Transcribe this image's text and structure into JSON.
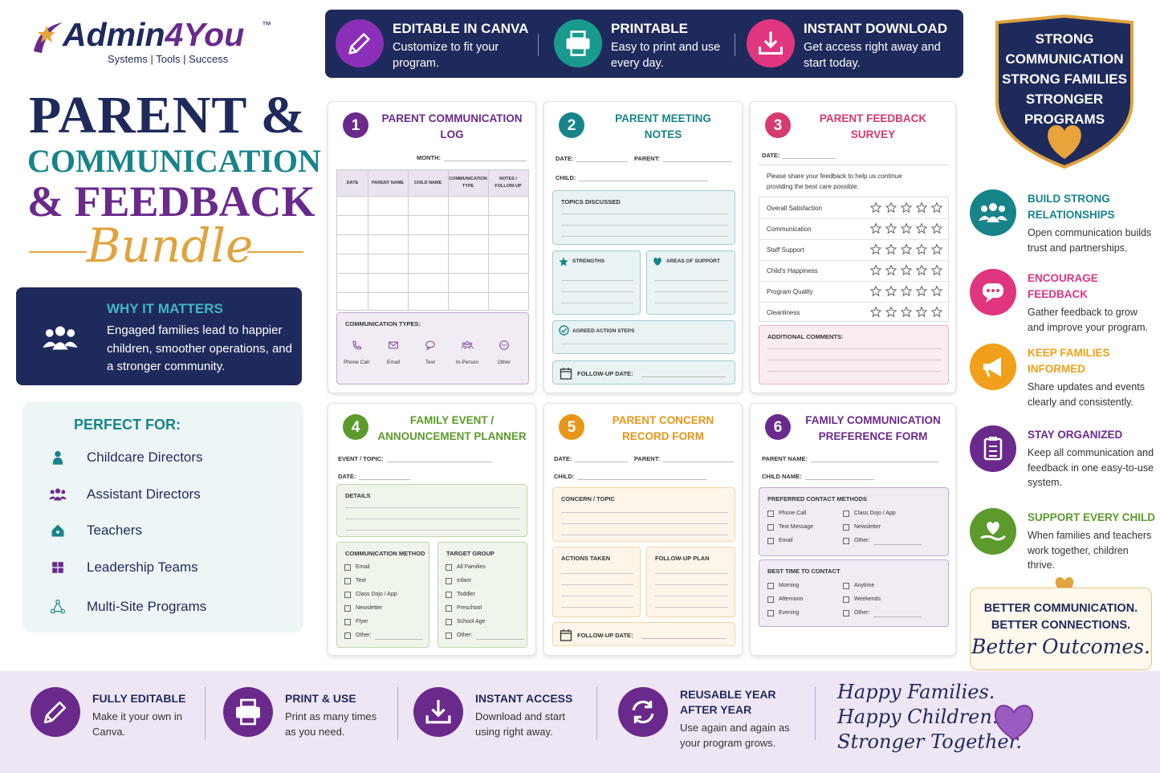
{
  "logo": {
    "brand": [
      "Admin",
      "4",
      "You"
    ],
    "tm": "™",
    "tagline": "Systems | Tools | Success"
  },
  "title": {
    "line1": "PARENT &",
    "line2": "COMMUNICATION",
    "line3": "& FEEDBACK",
    "line4": "Bundle"
  },
  "why": {
    "heading": "WHY IT MATTERS",
    "text": "Engaged families lead to happier children, smoother operations, and a stronger community."
  },
  "perfect_for": {
    "heading": "PERFECT FOR:",
    "items": [
      "Childcare Directors",
      "Assistant Directors",
      "Teachers",
      "Leadership Teams",
      "Multi-Site Programs"
    ]
  },
  "top_features": [
    {
      "title": "EDITABLE IN CANVA",
      "text": "Customize to fit your program."
    },
    {
      "title": "PRINTABLE",
      "text": "Easy to print and use every day."
    },
    {
      "title": "INSTANT DOWNLOAD",
      "text": "Get access right away and start today."
    }
  ],
  "badge": {
    "lines": [
      "STRONG",
      "COMMUNICATION",
      "STRONG FAMILIES",
      "STRONGER",
      "PROGRAMS"
    ]
  },
  "benefits": [
    {
      "title": "BUILD STRONG RELATIONSHIPS",
      "text": "Open communication builds trust and partnerships."
    },
    {
      "title": "ENCOURAGE FEEDBACK",
      "text": "Gather feedback to grow and improve your program."
    },
    {
      "title": "KEEP FAMILIES INFORMED",
      "text": "Share updates and events clearly and consistently."
    },
    {
      "title": "STAY ORGANIZED",
      "text": "Keep all communication and feedback in one easy-to-use system."
    },
    {
      "title": "SUPPORT EVERY CHILD",
      "text": "When families and teachers work together, children thrive."
    }
  ],
  "outcome": {
    "line1": "BETTER COMMUNICATION.",
    "line2": "BETTER CONNECTIONS.",
    "line3": "Better Outcomes."
  },
  "forms": [
    {
      "number": "1",
      "title": [
        "PARENT COMMUNICATION",
        "LOG"
      ],
      "color": "#6a2a8c",
      "month": "MONTH:",
      "columns": [
        "DATE",
        "PARENT NAME",
        "CHILD NAME",
        "COMMUNICATION TYPE",
        "NOTES / FOLLOW-UP"
      ],
      "types_heading": "COMMUNICATION TYPES:",
      "types": [
        "Phone Call",
        "Email",
        "Text",
        "In-Person",
        "Other"
      ]
    },
    {
      "number": "2",
      "title": [
        "PARENT MEETING",
        "NOTES"
      ],
      "color": "#17848a",
      "fields": [
        "DATE:",
        "PARENT:",
        "CHILD:"
      ],
      "topics": "TOPICS DISCUSSED",
      "strengths": "STRENGTHS",
      "support": "AREAS OF SUPPORT",
      "actions": "AGREED ACTION STEPS",
      "follow_up": "FOLLOW-UP DATE:"
    },
    {
      "number": "3",
      "title": [
        "PARENT FEEDBACK",
        "SURVEY"
      ],
      "color": "#d63a6e",
      "fields": [
        "DATE:"
      ],
      "intro": "Please share your feedback to help us continue providing the best care possible.",
      "ratings": [
        "Overall Satisfaction",
        "Communication",
        "Staff Support",
        "Child's Happiness",
        "Program Quality",
        "Cleanliness"
      ],
      "comments": "ADDITIONAL COMMENTS:"
    },
    {
      "number": "4",
      "title": [
        "FAMILY EVENT /",
        "ANNOUNCEMENT PLANNER"
      ],
      "color": "#5c9a2c",
      "fields": [
        "EVENT / TOPIC:",
        "DATE:"
      ],
      "details": "DETAILS",
      "method_heading": "COMMUNICATION METHOD",
      "methods": [
        "Email",
        "Text",
        "Class Dojo / App",
        "Newsletter",
        "Flyer",
        "Other:"
      ],
      "target_heading": "TARGET GROUP",
      "targets": [
        "All Families",
        "Infant",
        "Toddler",
        "Preschool",
        "School Age",
        "Other:"
      ]
    },
    {
      "number": "5",
      "title": [
        "PARENT CONCERN",
        "RECORD FORM"
      ],
      "color": "#e8961a",
      "fields": [
        "DATE:",
        "PARENT:",
        "CHILD:"
      ],
      "concern": "CONCERN / TOPIC",
      "actions": "ACTIONS TAKEN",
      "plan": "FOLLOW-UP PLAN",
      "follow_up": "FOLLOW-UP DATE:"
    },
    {
      "number": "6",
      "title": [
        "FAMILY COMMUNICATION",
        "PREFERENCE FORM"
      ],
      "color": "#6a2a8c",
      "fields": [
        "PARENT NAME:",
        "CHILD NAME:"
      ],
      "methods_heading": "PREFERRED CONTACT METHODS",
      "methods": [
        "Phone Call",
        "Class Dojo / App",
        "Text Message",
        "Newsletter",
        "Email",
        "Other:"
      ],
      "times_heading": "BEST TIME TO CONTACT",
      "times": [
        "Morning",
        "Anytime",
        "Afternoon",
        "Weekends",
        "Evening",
        "Other:"
      ]
    }
  ],
  "bottom_features": [
    {
      "title": "FULLY EDITABLE",
      "text": "Make it your own in Canva."
    },
    {
      "title": "PRINT & USE",
      "text": "Print as many times as you need."
    },
    {
      "title": "INSTANT ACCESS",
      "text": "Download and start using right away."
    },
    {
      "title": "REUSABLE YEAR AFTER YEAR",
      "text": "Use again and again as your program grows."
    }
  ],
  "closing": [
    "Happy Families.",
    "Happy Children.",
    "Stronger Together."
  ]
}
